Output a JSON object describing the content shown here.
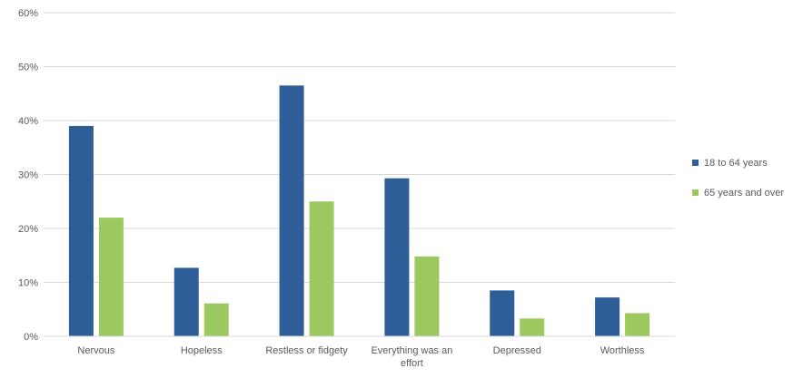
{
  "chart_data": {
    "type": "bar",
    "categories": [
      [
        "Nervous"
      ],
      [
        "Hopeless"
      ],
      [
        "Restless or fidgety"
      ],
      [
        "Everything was an",
        "effort"
      ],
      [
        "Depressed"
      ],
      [
        "Worthless"
      ]
    ],
    "series": [
      {
        "name": "18 to 64 years",
        "color": "#2e5e97",
        "values": [
          39,
          12.7,
          46.5,
          29.3,
          8.5,
          7.2
        ]
      },
      {
        "name": "65 years and over",
        "color": "#9bc95f",
        "values": [
          22,
          6.1,
          25,
          14.8,
          3.3,
          4.3
        ]
      }
    ],
    "y_ticks": [
      "0%",
      "10%",
      "20%",
      "30%",
      "40%",
      "50%",
      "60%"
    ],
    "ylim": [
      0,
      60
    ],
    "grid": true,
    "legend_position": "right"
  }
}
